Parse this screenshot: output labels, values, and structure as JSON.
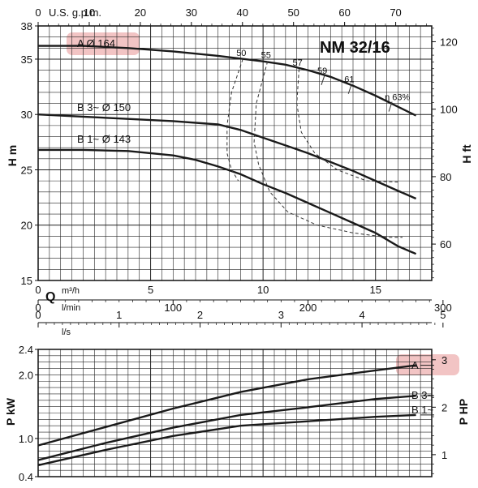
{
  "chart_data": [
    {
      "type": "line",
      "title": "NM 32/16",
      "xlabel": "Q",
      "ylabel": "H m",
      "y2label": "H ft",
      "xlim": [
        0,
        17.5
      ],
      "ylim": [
        15,
        38
      ],
      "y2lim": [
        49.2,
        124.7
      ],
      "grid": true,
      "bottom_axes": [
        {
          "unit": "m³/h",
          "range": [
            0,
            17.5
          ],
          "ticks": [
            0,
            5,
            10,
            15
          ]
        },
        {
          "unit": "l/min",
          "range": [
            0,
            291.7
          ],
          "ticks": [
            0,
            100,
            200,
            300
          ]
        },
        {
          "unit": "l/s",
          "range": [
            0,
            4.86
          ],
          "ticks": [
            0,
            1,
            2,
            3,
            4,
            5
          ]
        }
      ],
      "top_axis": {
        "unit": "U.S. g.p.m.",
        "range": [
          0,
          77
        ],
        "ticks": [
          0,
          10,
          20,
          30,
          40,
          50,
          60,
          70
        ]
      },
      "y_ticks": [
        15,
        20,
        25,
        30,
        35,
        38
      ],
      "y2_ticks": [
        60,
        80,
        100,
        120
      ],
      "series": [
        {
          "name": "A Ø 164",
          "x": [
            0,
            2,
            4,
            6,
            8,
            10,
            11,
            12,
            13,
            14,
            15,
            16,
            16.8
          ],
          "y": [
            36.2,
            36.2,
            36.0,
            35.7,
            35.3,
            34.8,
            34.5,
            34.0,
            33.4,
            32.6,
            31.7,
            30.7,
            29.9
          ]
        },
        {
          "name": "B 3~ Ø 150",
          "x": [
            0,
            2,
            4,
            6,
            8,
            9,
            10,
            11,
            12,
            13,
            14,
            15,
            16,
            16.8
          ],
          "y": [
            30.0,
            29.8,
            29.6,
            29.4,
            29.1,
            28.6,
            27.9,
            27.2,
            26.5,
            25.7,
            24.9,
            24.0,
            23.1,
            22.4
          ]
        },
        {
          "name": "B 1~ Ø 143",
          "x": [
            0,
            2,
            4,
            6,
            7,
            8,
            9,
            10,
            11,
            12,
            13,
            14,
            15,
            16,
            16.8
          ],
          "y": [
            26.8,
            26.8,
            26.7,
            26.3,
            25.9,
            25.3,
            24.6,
            23.7,
            22.9,
            22.0,
            21.1,
            20.2,
            19.3,
            18.1,
            17.4
          ]
        }
      ],
      "efficiency_curves": [
        {
          "label": "50",
          "x": [
            9.1,
            8.6,
            8.4,
            8.4,
            8.6,
            8.9
          ],
          "y": [
            35.0,
            32.0,
            29.0,
            26.5,
            25.0,
            24.0
          ]
        },
        {
          "label": "55",
          "x": [
            10.2,
            9.7,
            9.6,
            9.8,
            10.3,
            11.1,
            12.4,
            14.0,
            15.5,
            16.2
          ],
          "y": [
            34.8,
            31.0,
            27.5,
            25.5,
            23.0,
            21.2,
            20.0,
            19.3,
            18.9,
            18.9
          ]
        },
        {
          "label": "57",
          "x": [
            11.6,
            11.5,
            11.7,
            12.3,
            13.3,
            14.6,
            16.0
          ],
          "y": [
            34.1,
            31.0,
            28.4,
            26.5,
            25.0,
            24.0,
            23.9
          ]
        },
        {
          "label": "59",
          "x": [
            12.7
          ],
          "y": [
            33.4
          ]
        },
        {
          "label": "61",
          "x": [
            13.9
          ],
          "y": [
            32.6
          ]
        },
        {
          "label": "η 63%",
          "x": [
            15.7
          ],
          "y": [
            31.0
          ]
        }
      ]
    },
    {
      "type": "line",
      "xlabel": "",
      "ylabel": "P kW",
      "y2label": "P HP",
      "xlim": [
        0,
        17.5
      ],
      "ylim": [
        0.4,
        2.4
      ],
      "y2lim": [
        0.54,
        3.22
      ],
      "grid": true,
      "y_ticks": [
        0.4,
        1.0,
        2.0,
        2.4
      ],
      "y2_ticks": [
        1,
        2,
        3
      ],
      "series": [
        {
          "name": "A",
          "x": [
            0,
            3,
            6,
            9,
            12,
            15,
            16.8
          ],
          "y": [
            0.89,
            1.18,
            1.47,
            1.73,
            1.93,
            2.07,
            2.15
          ]
        },
        {
          "name": "B 3~",
          "x": [
            0,
            3,
            6,
            9,
            12,
            15,
            16.8
          ],
          "y": [
            0.66,
            0.93,
            1.17,
            1.37,
            1.49,
            1.62,
            1.67
          ]
        },
        {
          "name": "B 1~",
          "x": [
            0,
            3,
            6,
            9,
            12,
            15,
            16.8
          ],
          "y": [
            0.58,
            0.82,
            1.04,
            1.2,
            1.27,
            1.34,
            1.37
          ]
        }
      ]
    }
  ],
  "labels": {
    "model": "NM 32/16",
    "top_unit": "U.S. g.p.m.",
    "h_m": "H m",
    "h_ft": "H ft",
    "q": "Q",
    "q_m3h": "m³/h",
    "q_lmin": "l/min",
    "q_ls": "l/s",
    "p_kw": "P kW",
    "p_hp": "P HP",
    "curve_a": "A  Ø 164",
    "curve_b3": "B 3~  Ø 150",
    "curve_b1": "B 1~  Ø 143",
    "pcurve_a": "A",
    "pcurve_b3": "B 3~",
    "pcurve_b1": "B 1~"
  },
  "colors": {
    "curve": "#1a1a1a",
    "grid": "#222222",
    "highlight": "#f2c4c4",
    "dashed": "#333333"
  }
}
